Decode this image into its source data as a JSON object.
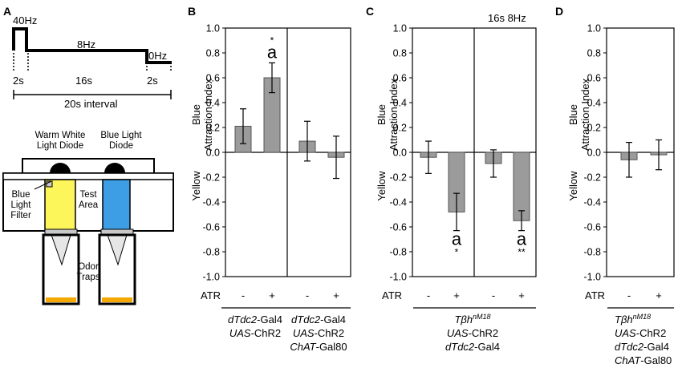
{
  "panels": {
    "A": {
      "letter": "A",
      "timing": {
        "start_freq": "40Hz",
        "middle_freq": "8Hz",
        "end_freq": "0Hz",
        "start_duration": "2s",
        "middle_duration": "16s",
        "end_duration": "2s",
        "interval_label": "20s interval"
      },
      "apparatus": {
        "warm_white_diode": [
          "Warm White",
          "Light Diode"
        ],
        "blue_diode": [
          "Blue Light",
          "Diode"
        ],
        "blue_filter": [
          "Blue",
          "Light",
          "Filter"
        ],
        "test_area": [
          "Test",
          "Area"
        ],
        "odor_traps": [
          "Odor",
          "Traps"
        ]
      }
    },
    "B": {
      "letter": "B",
      "atr_label": "ATR",
      "y_label_top": "Blue",
      "y_label_mid": "Attraction Index",
      "y_label_bottom": "Yellow",
      "groups": [
        {
          "line1": [
            "dTdc2",
            "-Gal4"
          ],
          "line2": [
            "UAS",
            "-ChR2"
          ],
          "line3": null
        },
        {
          "line1": [
            "dTdc2",
            "-Gal4"
          ],
          "line2": [
            "UAS",
            "-ChR2"
          ],
          "line3": [
            "ChAT",
            "-Gal80"
          ]
        }
      ]
    },
    "C": {
      "letter": "C",
      "atr_label": "ATR",
      "header": "16s 8Hz",
      "y_label_top": "Blue",
      "y_label_mid": "Attraction Index",
      "y_label_bottom": "Yellow",
      "genotype": {
        "name": "Tβh",
        "sup": "nM18",
        "line2": [
          "UAS",
          "-ChR2"
        ],
        "line3": [
          "dTdc2",
          "-Gal4"
        ]
      }
    },
    "D": {
      "letter": "D",
      "atr_label": "ATR",
      "y_label_top": "Blue",
      "y_label_mid": "Attraction Index",
      "y_label_bottom": "Yellow",
      "genotype": {
        "name": "Tβh",
        "sup": "nM18",
        "line2": [
          "UAS",
          "-ChR2"
        ],
        "line3": [
          "dTdc2",
          "-Gal4"
        ],
        "line4": [
          "ChAT",
          "-Gal80"
        ]
      }
    }
  },
  "chart_data": [
    {
      "panel": "B",
      "type": "bar",
      "ylabel": "Blue Attraction Index Yellow",
      "ylim": [
        -1.0,
        1.0
      ],
      "yticks": [
        "1.0",
        "0.8",
        "0.6",
        "0.4",
        "0.2",
        "0.0",
        "-0.2",
        "-0.4",
        "-0.6",
        "-0.8",
        "-1.0"
      ],
      "categories": [
        "-",
        "+",
        "-",
        "+"
      ],
      "values": [
        0.21,
        0.6,
        0.09,
        -0.04
      ],
      "errors": [
        0.14,
        0.12,
        0.16,
        0.17
      ],
      "annotations": [
        {
          "bar": 1,
          "star": "*",
          "letter": "a"
        }
      ]
    },
    {
      "panel": "C",
      "type": "bar",
      "ylabel": "Blue Attraction Index Yellow",
      "ylim": [
        -1.0,
        1.0
      ],
      "yticks": [
        "1.0",
        "0.8",
        "0.6",
        "0.4",
        "0.2",
        "0.0",
        "-0.2",
        "-0.4",
        "-0.6",
        "-0.8",
        "-1.0"
      ],
      "categories": [
        "-",
        "+",
        "-",
        "+"
      ],
      "values": [
        -0.04,
        -0.48,
        -0.09,
        -0.55
      ],
      "errors": [
        0.13,
        0.15,
        0.11,
        0.08
      ],
      "annotations": [
        {
          "bar": 1,
          "star": "*",
          "letter": "a"
        },
        {
          "bar": 3,
          "star": "**",
          "letter": "a"
        }
      ]
    },
    {
      "panel": "D",
      "type": "bar",
      "ylabel": "Blue Attraction Index Yellow",
      "ylim": [
        -1.0,
        1.0
      ],
      "yticks": [
        "1.0",
        "0.8",
        "0.6",
        "0.4",
        "0.2",
        "0.0",
        "-0.2",
        "-0.4",
        "-0.6",
        "-0.8",
        "-1.0"
      ],
      "categories": [
        "-",
        "+"
      ],
      "values": [
        -0.06,
        -0.02
      ],
      "errors": [
        0.14,
        0.12
      ],
      "annotations": []
    }
  ]
}
